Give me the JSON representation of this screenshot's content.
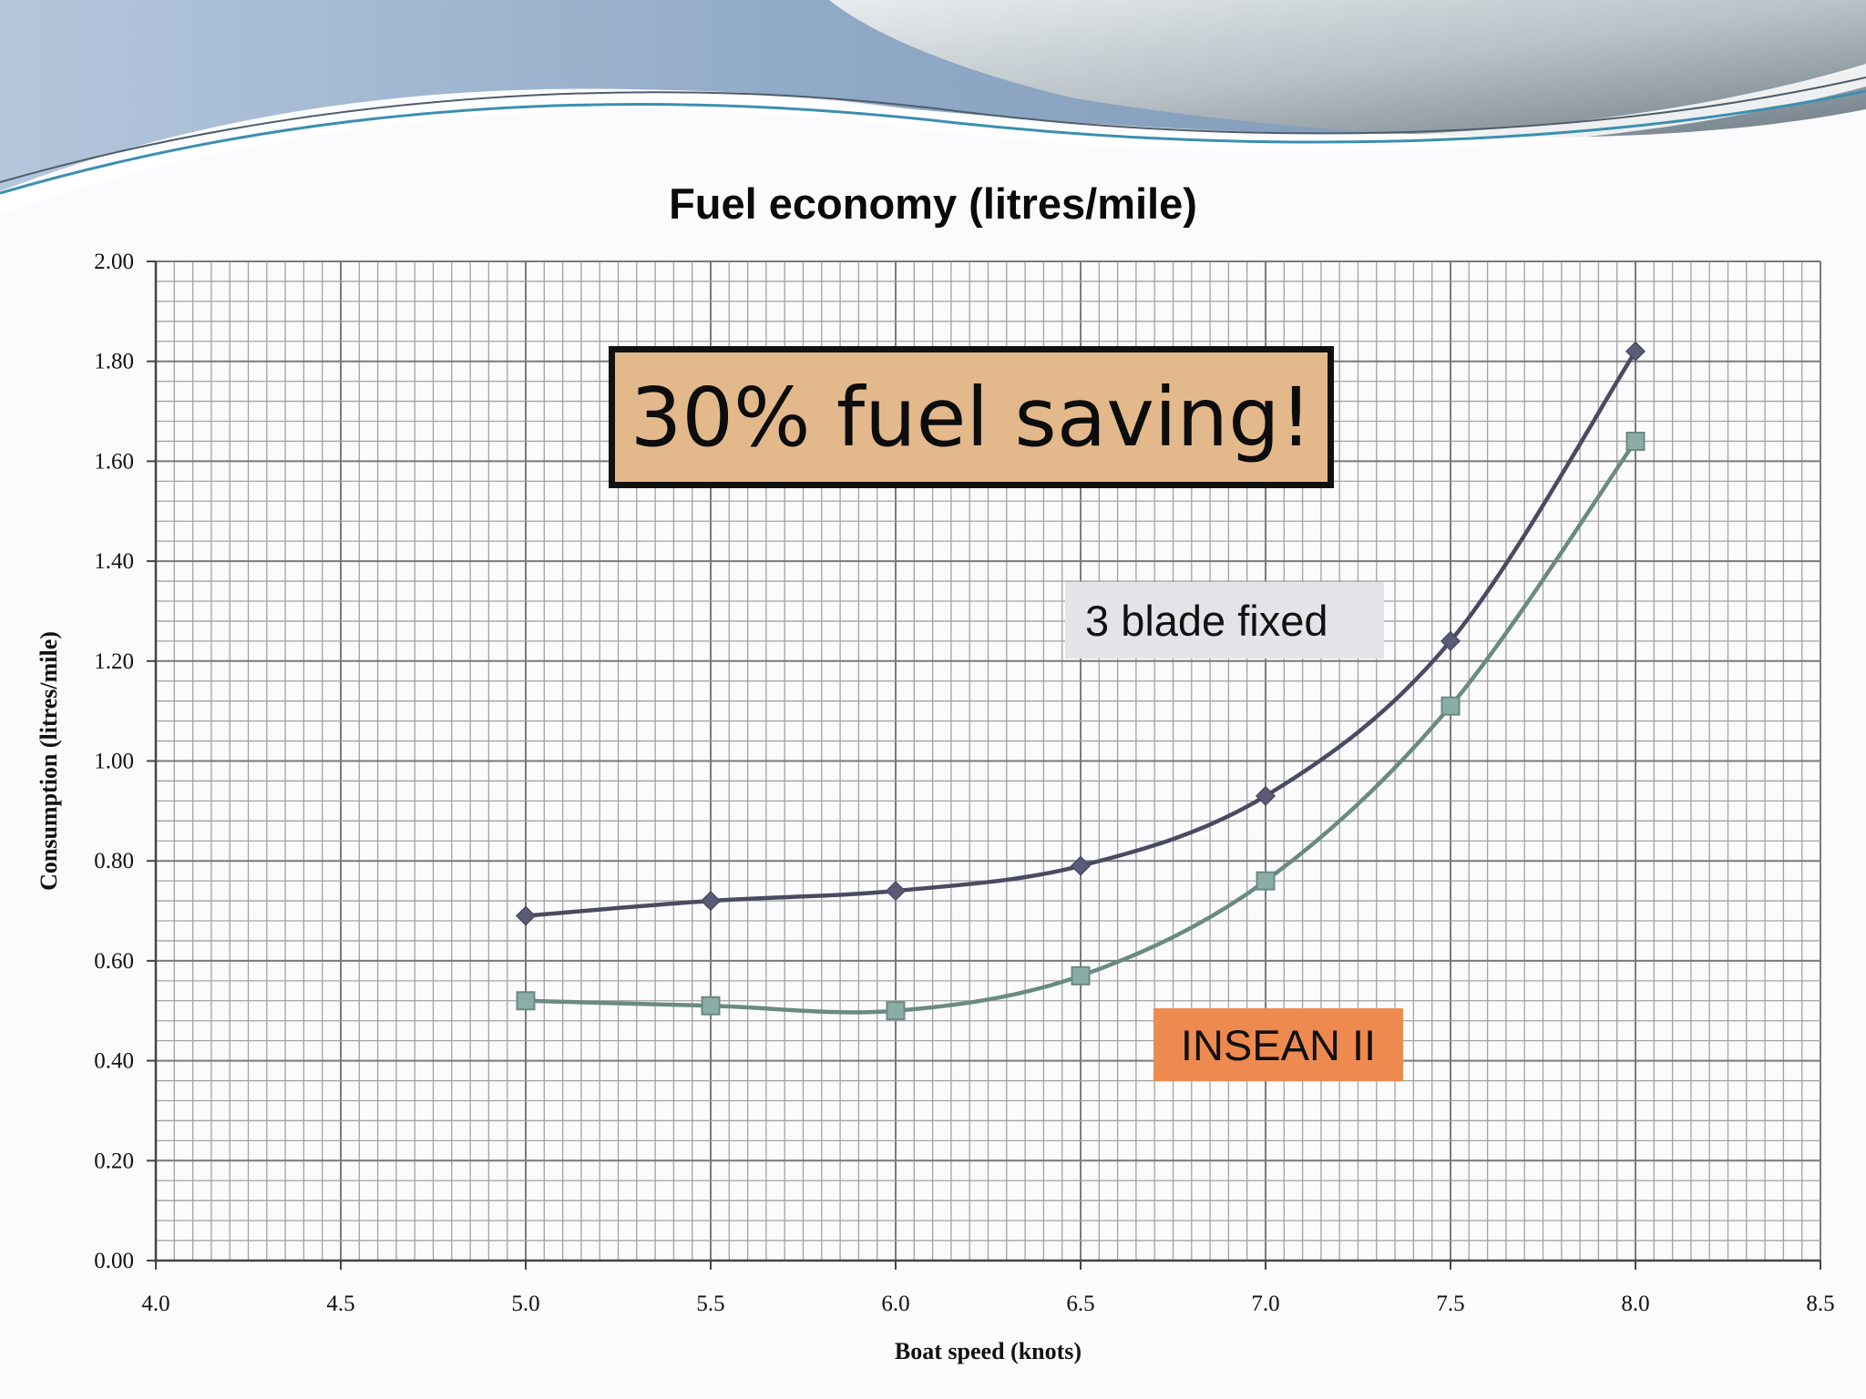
{
  "chart_data": {
    "type": "line",
    "title": "Fuel economy (litres/mile)",
    "xlabel": "Boat speed (knots)",
    "ylabel": "Consumption (litres/mile)",
    "xlim": [
      4.0,
      8.5
    ],
    "ylim": [
      0.0,
      2.0
    ],
    "x_ticks": [
      "4.0",
      "4.5",
      "5.0",
      "5.5",
      "6.0",
      "6.5",
      "7.0",
      "7.5",
      "8.0",
      "8.5"
    ],
    "y_ticks": [
      "0.00",
      "0.20",
      "0.40",
      "0.60",
      "0.80",
      "1.00",
      "1.20",
      "1.40",
      "1.60",
      "1.80",
      "2.00"
    ],
    "grid": true,
    "smooth": true,
    "series": [
      {
        "name": "3 blade fixed",
        "marker": "diamond",
        "color": "#4a4a62",
        "marker_color": "#5b5b78",
        "x": [
          5.0,
          5.5,
          6.0,
          6.5,
          7.0,
          7.5,
          8.0
        ],
        "y": [
          0.69,
          0.72,
          0.74,
          0.79,
          0.93,
          1.24,
          1.82
        ]
      },
      {
        "name": "INSEAN II",
        "marker": "square",
        "color": "#6a8a82",
        "marker_color": "#8aaea6",
        "x": [
          5.0,
          5.5,
          6.0,
          6.5,
          7.0,
          7.5,
          8.0
        ],
        "y": [
          0.52,
          0.51,
          0.5,
          0.57,
          0.76,
          1.11,
          1.64
        ]
      }
    ],
    "annotations": {
      "callout": "30% fuel saving!",
      "callout_color": "#e3b98c",
      "series_label_1": "3 blade fixed",
      "series_label_1_color": "#e4e4e8",
      "series_label_2": "INSEAN II",
      "series_label_2_color": "#ee8a4f"
    }
  }
}
